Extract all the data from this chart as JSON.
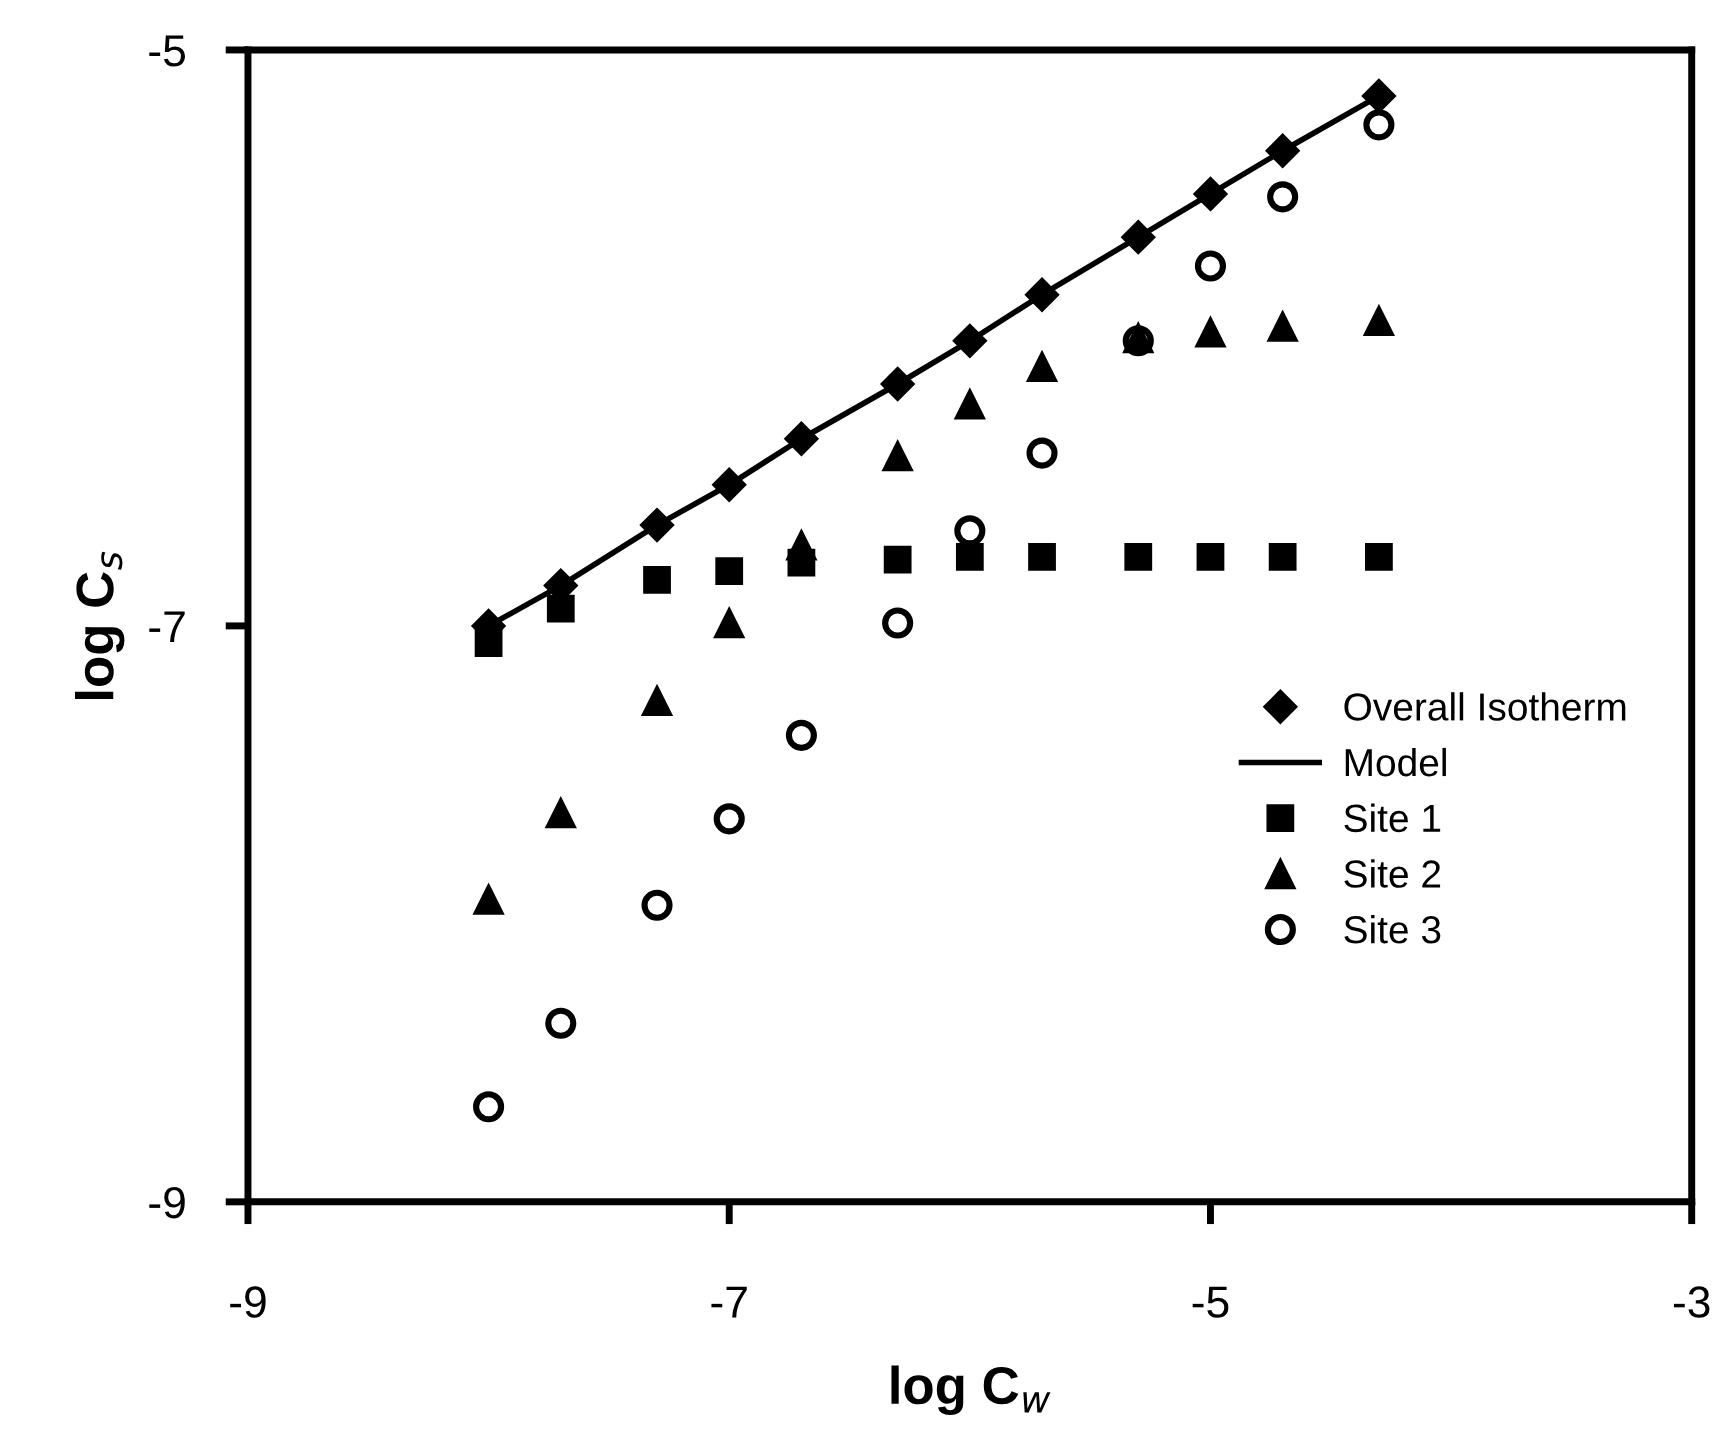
{
  "chart_data": {
    "type": "scatter",
    "xlabel": "log C$_{w}$",
    "ylabel": "log C$_{s}$",
    "x": [
      -8.0,
      -7.7,
      -7.3,
      -7.0,
      -6.7,
      -6.3,
      -6.0,
      -5.7,
      -5.3,
      -5.0,
      -4.7,
      -4.3
    ],
    "series": [
      {
        "name": "Overall Isotherm",
        "color": "#000000",
        "marker": "diamond",
        "values": [
          -7.0,
          -6.86,
          -6.65,
          -6.51,
          -6.35,
          -6.16,
          -6.01,
          -5.85,
          -5.65,
          -5.5,
          -5.35,
          -5.16
        ]
      },
      {
        "name": "Model",
        "type": "line",
        "color": "#000000",
        "marker": "none",
        "line_style": "solid",
        "values": [
          -7.0,
          -6.86,
          -6.65,
          -6.51,
          -6.35,
          -6.16,
          -6.01,
          -5.85,
          -5.65,
          -5.5,
          -5.35,
          -5.16
        ]
      },
      {
        "name": "Site 1",
        "color": "#000000",
        "marker": "square",
        "values": [
          -7.06,
          -6.94,
          -6.84,
          -6.81,
          -6.78,
          -6.77,
          -6.76,
          -6.76,
          -6.76,
          -6.76,
          -6.76,
          -6.76
        ]
      },
      {
        "name": "Site 2",
        "color": "#000000",
        "marker": "triangle",
        "values": [
          -7.95,
          -7.65,
          -7.26,
          -6.99,
          -6.72,
          -6.41,
          -6.23,
          -6.1,
          -6.0,
          -5.98,
          -5.96,
          -5.94
        ]
      },
      {
        "name": "Site 3",
        "color": "#000000",
        "marker": "circle",
        "values": [
          -8.67,
          -8.38,
          -7.97,
          -7.67,
          -7.38,
          -6.99,
          -6.67,
          -6.4,
          -6.01,
          -5.75,
          -5.51,
          -5.26
        ]
      }
    ],
    "xlim": [
      -9,
      -3
    ],
    "ylim": [
      -9,
      -5
    ],
    "xticks": [
      -9,
      -7,
      -5,
      -3
    ],
    "yticks": [
      -9,
      -7,
      -5
    ],
    "grid": false,
    "legend": "center right"
  }
}
